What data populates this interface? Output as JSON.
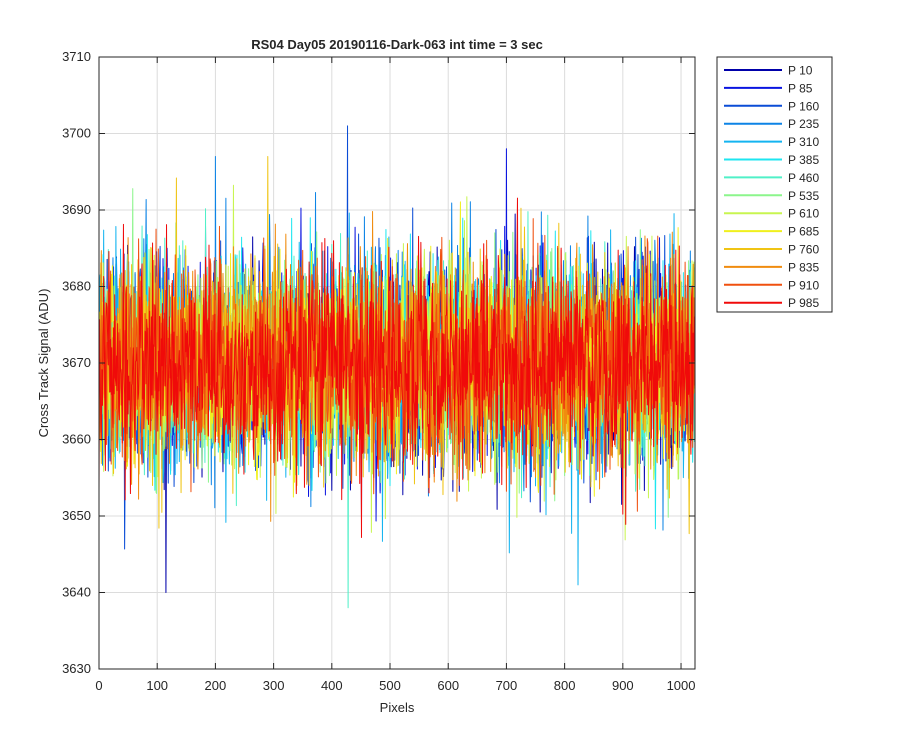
{
  "chart_data": {
    "type": "line",
    "title": "RS04 Day05 20190116-Dark-063 int time = 3 sec",
    "xlabel": "Pixels",
    "ylabel": "Cross Track Signal (ADU)",
    "xlim": [
      0,
      1024
    ],
    "ylim": [
      3630,
      3710
    ],
    "xticks": [
      0,
      100,
      200,
      300,
      400,
      500,
      600,
      700,
      800,
      900,
      1000
    ],
    "yticks": [
      3630,
      3640,
      3650,
      3660,
      3670,
      3680,
      3690,
      3700,
      3710
    ],
    "grid": true,
    "legend_position": "outside-right-top",
    "noise": {
      "mean": 3670,
      "sigma": 6.5,
      "samples_per_series": 1024
    },
    "series": [
      {
        "name": "P 10",
        "color": "#0000aa"
      },
      {
        "name": "P 85",
        "color": "#0a14e0"
      },
      {
        "name": "P 160",
        "color": "#0a4cd6"
      },
      {
        "name": "P 235",
        "color": "#0d84e6"
      },
      {
        "name": "P 310",
        "color": "#14b4f0"
      },
      {
        "name": "P 385",
        "color": "#1ee6f0"
      },
      {
        "name": "P 460",
        "color": "#50f0c8"
      },
      {
        "name": "P 535",
        "color": "#8cf58c"
      },
      {
        "name": "P 610",
        "color": "#c8f550"
      },
      {
        "name": "P 685",
        "color": "#f0f01e"
      },
      {
        "name": "P 760",
        "color": "#f0c414"
      },
      {
        "name": "P 835",
        "color": "#f08c0f"
      },
      {
        "name": "P 910",
        "color": "#f0500f"
      },
      {
        "name": "P 985",
        "color": "#f00a0a"
      }
    ],
    "annotated_extremes": [
      {
        "series": "P 160",
        "x": 427,
        "y": 3701
      },
      {
        "series": "P 85",
        "x": 700,
        "y": 3698
      },
      {
        "series": "P 235",
        "x": 200,
        "y": 3697
      },
      {
        "series": "P 760",
        "x": 290,
        "y": 3697
      },
      {
        "series": "P 10",
        "x": 115,
        "y": 3640
      },
      {
        "series": "P 460",
        "x": 428,
        "y": 3638
      },
      {
        "series": "P 310",
        "x": 823,
        "y": 3641
      }
    ]
  }
}
